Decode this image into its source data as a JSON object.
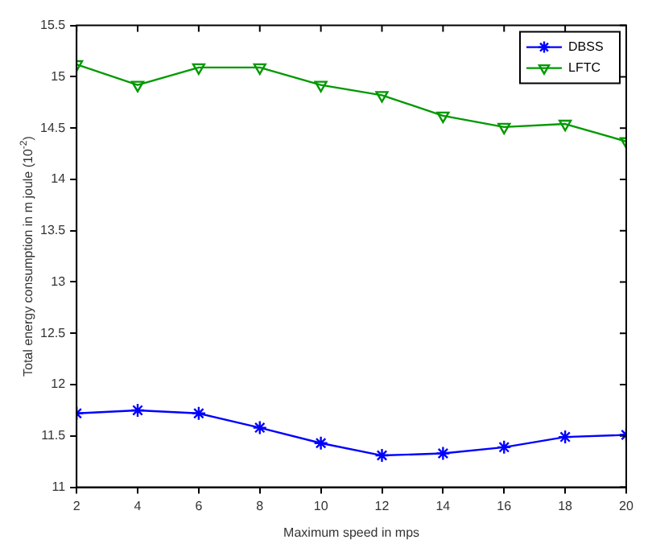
{
  "chart_data": {
    "type": "line",
    "xlabel": "Maximum speed in mps",
    "ylabel": "Total energy consumption in m joule (10$^{-2}$)",
    "x": [
      2,
      4,
      6,
      8,
      10,
      12,
      14,
      16,
      18,
      20
    ],
    "series": [
      {
        "name": "DBSS",
        "color": "#0000ff",
        "marker": "cross",
        "values": [
          11.72,
          11.75,
          11.72,
          11.58,
          11.43,
          11.31,
          11.33,
          11.39,
          11.49,
          11.51
        ]
      },
      {
        "name": "LFTC",
        "color": "#009900",
        "marker": "triangle",
        "values": [
          15.12,
          14.92,
          15.09,
          15.09,
          14.92,
          14.82,
          14.62,
          14.51,
          14.54,
          14.37
        ]
      }
    ],
    "xlim": [
      2,
      20
    ],
    "xticks": [
      2,
      4,
      6,
      8,
      10,
      12,
      14,
      16,
      18,
      20
    ],
    "ylim": [
      11,
      15.5
    ],
    "yticks": [
      11,
      11.5,
      12,
      12.5,
      13,
      13.5,
      14,
      14.5,
      15,
      15.5
    ],
    "grid": false,
    "legend": "top right",
    "line_style": "solid"
  }
}
